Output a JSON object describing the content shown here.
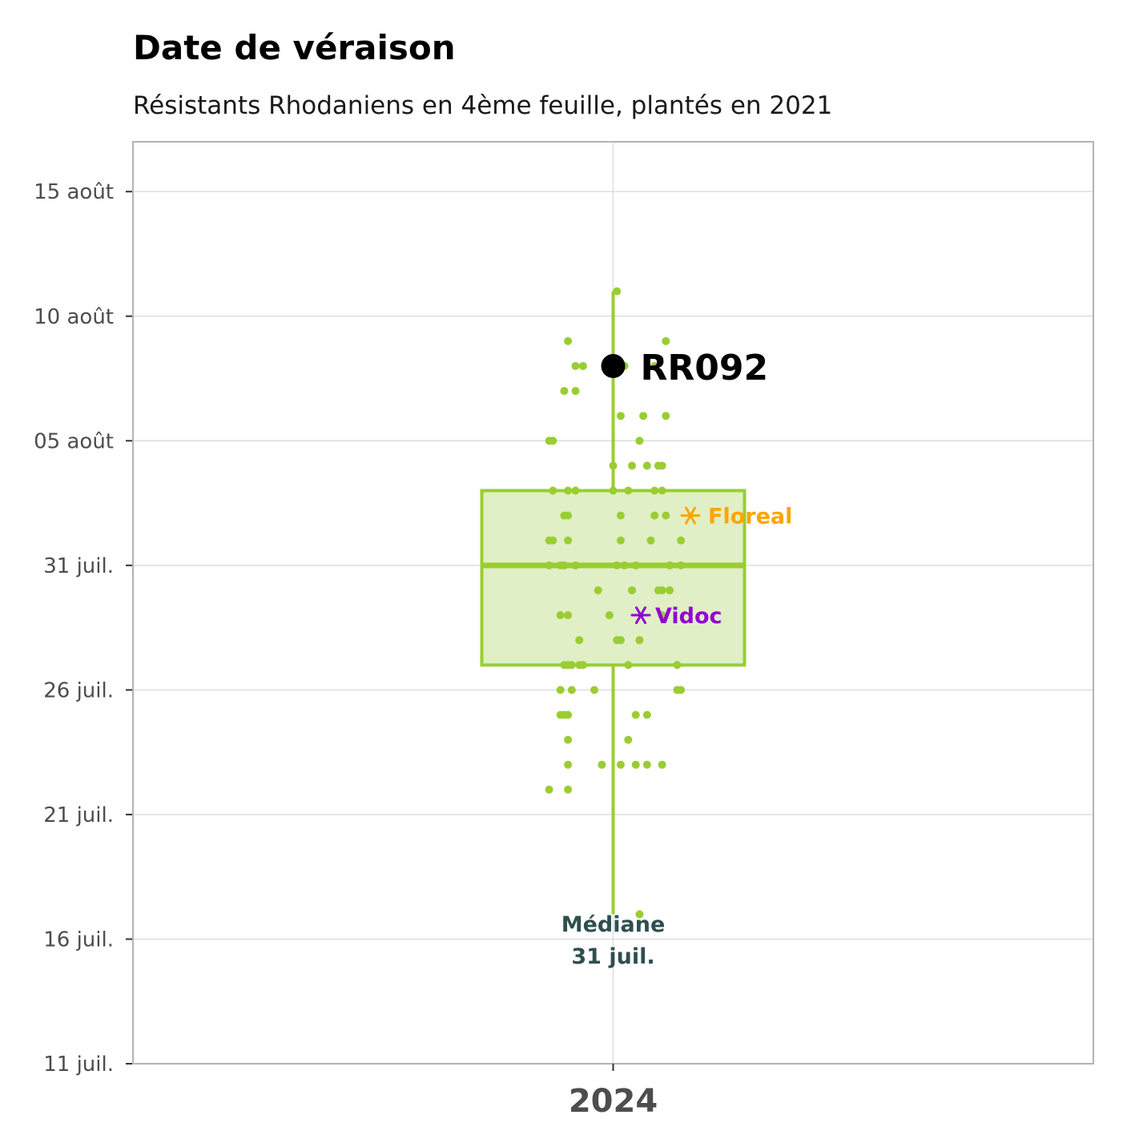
{
  "chart_data": {
    "type": "boxplot",
    "title": "Date de véraison",
    "subtitle": "Résistants Rhodaniens en 4ème feuille, plantés en 2021",
    "category": "2024",
    "y_axis": {
      "ticks": [
        "11 juil.",
        "16 juil.",
        "21 juil.",
        "26 juil.",
        "31 juil.",
        "05 août",
        "10 août",
        "15 août"
      ],
      "tick_dates": [
        "2024-07-11",
        "2024-07-16",
        "2024-07-21",
        "2024-07-26",
        "2024-07-31",
        "2024-08-05",
        "2024-08-10",
        "2024-08-15"
      ],
      "range": [
        "2024-07-11",
        "2024-08-17"
      ]
    },
    "grid": true,
    "box": {
      "color": "#9acd32",
      "fill": "#e0efc6",
      "whisker_low": "2024-07-17",
      "q1": "2024-07-27",
      "median": "2024-07-31",
      "q3": "2024-08-03",
      "whisker_high": "2024-08-11"
    },
    "points": [
      {
        "x": 0.01,
        "date": "2024-08-11"
      },
      {
        "x": -0.12,
        "date": "2024-08-09"
      },
      {
        "x": 0.14,
        "date": "2024-08-09"
      },
      {
        "x": -0.1,
        "date": "2024-08-08"
      },
      {
        "x": -0.08,
        "date": "2024-08-08"
      },
      {
        "x": 0.03,
        "date": "2024-08-08"
      },
      {
        "x": 0.11,
        "date": "2024-08-08"
      },
      {
        "x": -0.13,
        "date": "2024-08-07"
      },
      {
        "x": -0.1,
        "date": "2024-08-07"
      },
      {
        "x": 0.02,
        "date": "2024-08-06"
      },
      {
        "x": 0.08,
        "date": "2024-08-06"
      },
      {
        "x": 0.14,
        "date": "2024-08-06"
      },
      {
        "x": -0.17,
        "date": "2024-08-05"
      },
      {
        "x": -0.16,
        "date": "2024-08-05"
      },
      {
        "x": 0.07,
        "date": "2024-08-05"
      },
      {
        "x": 0,
        "date": "2024-08-04"
      },
      {
        "x": 0.05,
        "date": "2024-08-04"
      },
      {
        "x": 0.09,
        "date": "2024-08-04"
      },
      {
        "x": 0.12,
        "date": "2024-08-04"
      },
      {
        "x": 0.13,
        "date": "2024-08-04"
      },
      {
        "x": -0.16,
        "date": "2024-08-03"
      },
      {
        "x": -0.12,
        "date": "2024-08-03"
      },
      {
        "x": -0.1,
        "date": "2024-08-03"
      },
      {
        "x": 0,
        "date": "2024-08-03"
      },
      {
        "x": 0.04,
        "date": "2024-08-03"
      },
      {
        "x": 0.11,
        "date": "2024-08-03"
      },
      {
        "x": 0.13,
        "date": "2024-08-03"
      },
      {
        "x": -0.13,
        "date": "2024-08-02"
      },
      {
        "x": -0.12,
        "date": "2024-08-02"
      },
      {
        "x": 0.02,
        "date": "2024-08-02"
      },
      {
        "x": 0.11,
        "date": "2024-08-02"
      },
      {
        "x": 0.14,
        "date": "2024-08-02"
      },
      {
        "x": -0.17,
        "date": "2024-08-01"
      },
      {
        "x": -0.16,
        "date": "2024-08-01"
      },
      {
        "x": -0.12,
        "date": "2024-08-01"
      },
      {
        "x": 0.02,
        "date": "2024-08-01"
      },
      {
        "x": 0.1,
        "date": "2024-08-01"
      },
      {
        "x": 0.18,
        "date": "2024-08-01"
      },
      {
        "x": -0.17,
        "date": "2024-07-31"
      },
      {
        "x": -0.14,
        "date": "2024-07-31"
      },
      {
        "x": -0.13,
        "date": "2024-07-31"
      },
      {
        "x": -0.1,
        "date": "2024-07-31"
      },
      {
        "x": 0.01,
        "date": "2024-07-31"
      },
      {
        "x": 0.03,
        "date": "2024-07-31"
      },
      {
        "x": 0.06,
        "date": "2024-07-31"
      },
      {
        "x": 0.15,
        "date": "2024-07-31"
      },
      {
        "x": 0.18,
        "date": "2024-07-31"
      },
      {
        "x": -0.04,
        "date": "2024-07-30"
      },
      {
        "x": 0.05,
        "date": "2024-07-30"
      },
      {
        "x": 0.12,
        "date": "2024-07-30"
      },
      {
        "x": 0.13,
        "date": "2024-07-30"
      },
      {
        "x": 0.15,
        "date": "2024-07-30"
      },
      {
        "x": -0.14,
        "date": "2024-07-29"
      },
      {
        "x": -0.12,
        "date": "2024-07-29"
      },
      {
        "x": -0.01,
        "date": "2024-07-29"
      },
      {
        "x": 0.13,
        "date": "2024-07-29"
      },
      {
        "x": -0.09,
        "date": "2024-07-28"
      },
      {
        "x": 0.01,
        "date": "2024-07-28"
      },
      {
        "x": 0.02,
        "date": "2024-07-28"
      },
      {
        "x": 0.07,
        "date": "2024-07-28"
      },
      {
        "x": -0.13,
        "date": "2024-07-27"
      },
      {
        "x": -0.12,
        "date": "2024-07-27"
      },
      {
        "x": -0.11,
        "date": "2024-07-27"
      },
      {
        "x": -0.09,
        "date": "2024-07-27"
      },
      {
        "x": -0.08,
        "date": "2024-07-27"
      },
      {
        "x": 0.04,
        "date": "2024-07-27"
      },
      {
        "x": 0.17,
        "date": "2024-07-27"
      },
      {
        "x": -0.14,
        "date": "2024-07-26"
      },
      {
        "x": -0.11,
        "date": "2024-07-26"
      },
      {
        "x": -0.05,
        "date": "2024-07-26"
      },
      {
        "x": 0.17,
        "date": "2024-07-26"
      },
      {
        "x": 0.18,
        "date": "2024-07-26"
      },
      {
        "x": -0.14,
        "date": "2024-07-25"
      },
      {
        "x": -0.13,
        "date": "2024-07-25"
      },
      {
        "x": -0.12,
        "date": "2024-07-25"
      },
      {
        "x": 0.06,
        "date": "2024-07-25"
      },
      {
        "x": 0.09,
        "date": "2024-07-25"
      },
      {
        "x": -0.12,
        "date": "2024-07-24"
      },
      {
        "x": 0.04,
        "date": "2024-07-24"
      },
      {
        "x": -0.12,
        "date": "2024-07-23"
      },
      {
        "x": -0.03,
        "date": "2024-07-23"
      },
      {
        "x": 0.02,
        "date": "2024-07-23"
      },
      {
        "x": 0.06,
        "date": "2024-07-23"
      },
      {
        "x": 0.09,
        "date": "2024-07-23"
      },
      {
        "x": 0.13,
        "date": "2024-07-23"
      },
      {
        "x": -0.17,
        "date": "2024-07-22"
      },
      {
        "x": -0.12,
        "date": "2024-07-22"
      },
      {
        "x": 0.07,
        "date": "2024-07-17"
      }
    ],
    "highlight": {
      "label": "RR092",
      "date": "2024-08-08",
      "color": "#000000"
    },
    "references": [
      {
        "label": "Floreal",
        "date": "2024-08-02",
        "color": "#ffa500"
      },
      {
        "label": "Vidoc",
        "date": "2024-07-29",
        "color": "#9400d3"
      }
    ],
    "median_annotation": {
      "line1": "Médiane",
      "line2": "31 juil."
    }
  }
}
